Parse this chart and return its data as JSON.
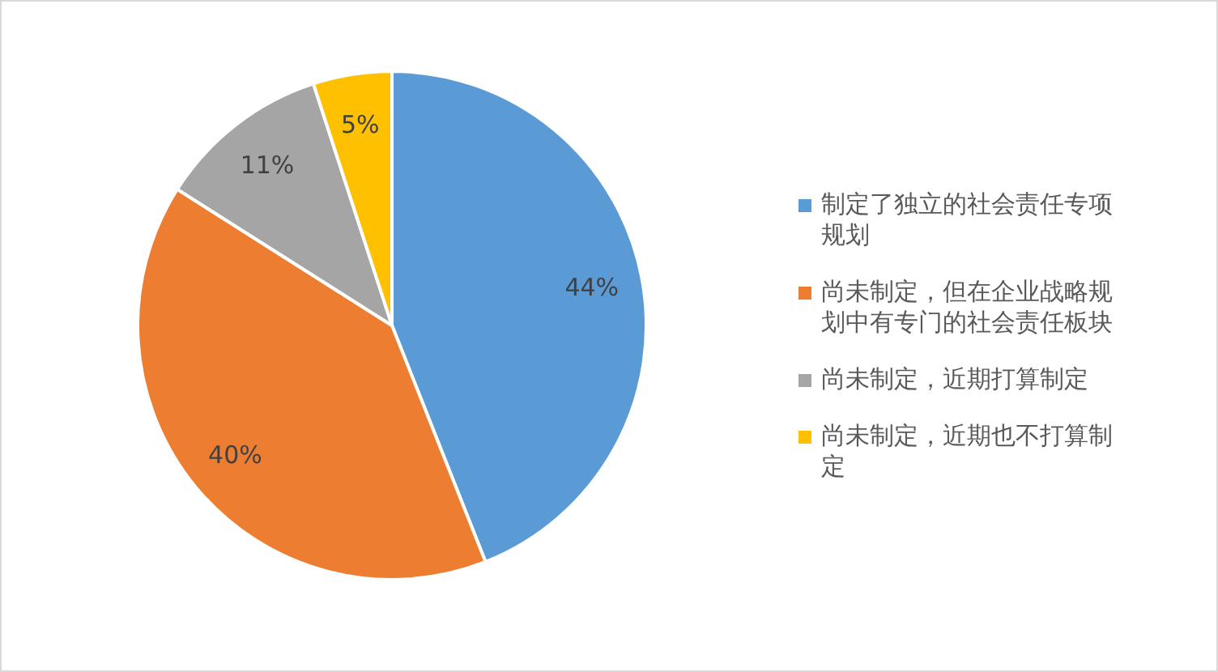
{
  "chart_data": {
    "type": "pie",
    "categories": [
      "制定了独立的社会责任专项规划",
      "尚未制定，但在企业战略规划中有专门的社会责任板块",
      "尚未制定，近期打算制定",
      "尚未制定，近期也不打算制定"
    ],
    "values": [
      44,
      40,
      11,
      5
    ],
    "colors": [
      "#5b9bd5",
      "#ed7d31",
      "#a5a5a5",
      "#ffc000"
    ],
    "value_labels": [
      "44%",
      "40%",
      "11%",
      "5%"
    ],
    "legend": "right"
  }
}
